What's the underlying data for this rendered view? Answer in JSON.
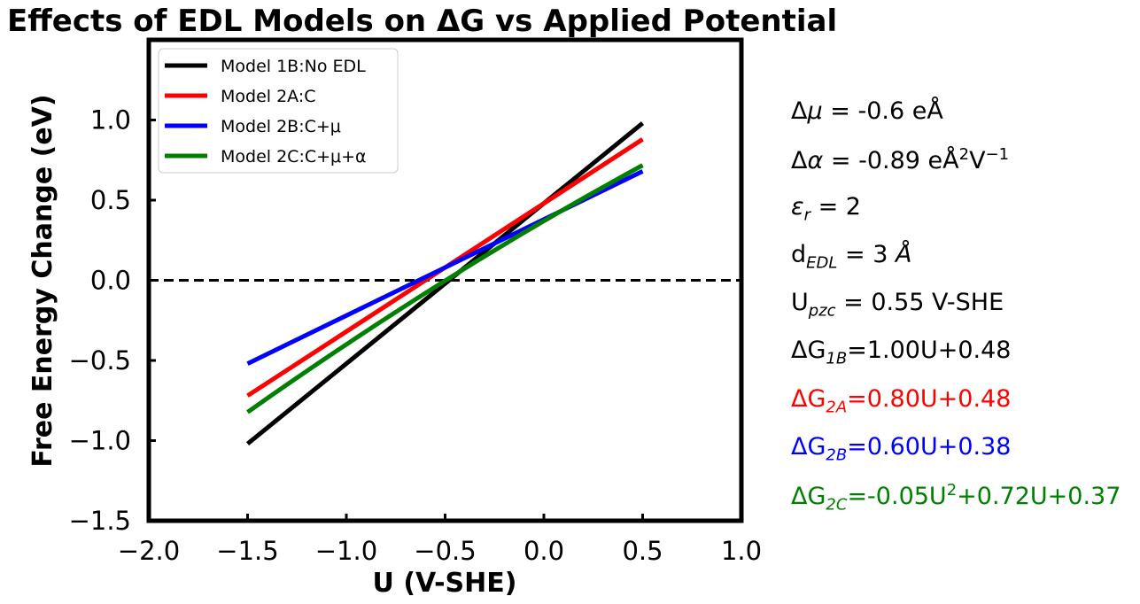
{
  "chart_data": {
    "type": "line",
    "title": "Effects of EDL Models on ΔG vs Applied Potential",
    "xlabel": "U (V-SHE)",
    "ylabel": "Free Energy Change (eV)",
    "xlim": [
      -2.0,
      1.0
    ],
    "ylim": [
      -1.5,
      1.5
    ],
    "xticks": [
      -2.0,
      -1.5,
      -1.0,
      -0.5,
      0.0,
      0.5,
      1.0
    ],
    "xtick_labels": [
      "−2.0",
      "−1.5",
      "−1.0",
      "−0.5",
      "0.0",
      "0.5",
      "1.0"
    ],
    "yticks": [
      -1.5,
      -1.0,
      -0.5,
      0.0,
      0.5,
      1.0
    ],
    "ytick_labels": [
      "−1.5",
      "−1.0",
      "−0.5",
      "0.0",
      "0.5",
      "1.0"
    ],
    "grid": false,
    "legend_position": "top-left",
    "reference_line": {
      "y": 0.0,
      "style": "dashed",
      "color": "#000000"
    },
    "x": [
      -1.5,
      0.5
    ],
    "series": [
      {
        "name": "Model 1B:No EDL",
        "color": "#000000",
        "values": [
          -1.02,
          0.98
        ]
      },
      {
        "name": "Model 2A:C",
        "color": "#ff0000",
        "values": [
          -0.72,
          0.88
        ]
      },
      {
        "name": "Model 2B:C+μ",
        "color": "#0000ff",
        "values": [
          -0.52,
          0.68
        ]
      },
      {
        "name": "Model 2C:C+μ+α",
        "color": "#008000",
        "values": [
          -0.825,
          0.715
        ],
        "quadratic": [
          -0.05,
          0.72,
          0.37
        ]
      }
    ]
  },
  "annotations": {
    "dmu": {
      "sym": "Δ",
      "var": "μ",
      "rest": " = -0.6 eÅ"
    },
    "dalpha": {
      "sym": "Δ",
      "var": "α",
      "mid": " = -0.89 eÅ",
      "sup1": "2",
      "v": "V",
      "sup2": "−1"
    },
    "eps": {
      "var": "ε",
      "sub": "r",
      "rest": " = 2"
    },
    "dedl": {
      "pre": "d",
      "sub": "EDL",
      "eq": " = 3 ",
      "unit": "Å"
    },
    "upzc": {
      "pre": "U",
      "sub": "pzc",
      "rest": " = 0.55 V-SHE"
    },
    "g1b": {
      "pre": "ΔG",
      "sub": "1B",
      "rest": "=1.00U+0.48",
      "color": "#000000"
    },
    "g2a": {
      "pre": "ΔG",
      "sub": "2A",
      "rest": "=0.80U+0.48",
      "color": "#ff0000"
    },
    "g2b": {
      "pre": "ΔG",
      "sub": "2B",
      "rest": "=0.60U+0.38",
      "color": "#0000ff"
    },
    "g2c": {
      "pre": "ΔG",
      "sub": "2C",
      "a": "=-0.05U",
      "sup": "2",
      "b": "+0.72U+0.37",
      "color": "#008000"
    }
  }
}
